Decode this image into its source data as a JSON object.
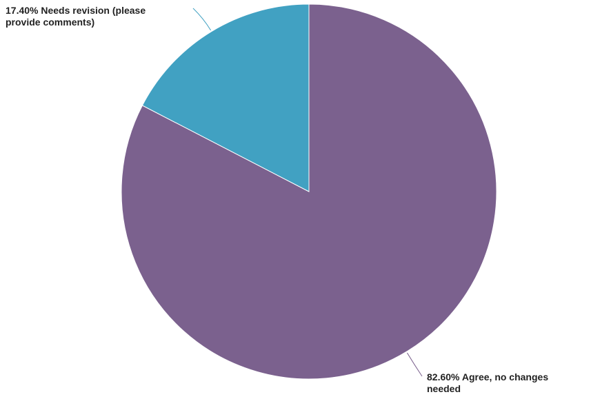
{
  "chart_data": {
    "type": "pie",
    "slices": [
      {
        "label": "Agree, no changes needed",
        "value": 82.6,
        "display": "82.60% Agree, no changes\nneeded",
        "color": "#7B618E"
      },
      {
        "label": "Needs revision (please provide comments)",
        "value": 17.4,
        "display": "17.40% Needs revision (please\nprovide comments)",
        "color": "#41A1C2"
      }
    ],
    "start_angle": "12 o'clock",
    "direction": "clockwise",
    "legend": "none"
  }
}
